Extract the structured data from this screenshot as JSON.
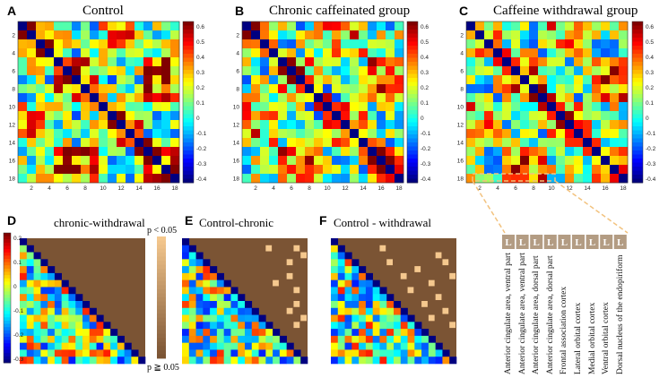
{
  "panels": [
    {
      "letter": "A",
      "title": "Control"
    },
    {
      "letter": "B",
      "title": "Chronic caffeinated group"
    },
    {
      "letter": "C",
      "title": "Caffeine withdrawal group"
    },
    {
      "letter": "D",
      "title": "chronic-withdrawal"
    },
    {
      "letter": "E",
      "title": "Control-chronic"
    },
    {
      "letter": "F",
      "title": "Control - withdrawal"
    }
  ],
  "colorbar_ticks_top": [
    "0.6",
    "0.5",
    "0.4",
    "0.3",
    "0.2",
    "0.1",
    "0",
    "-0.1",
    "-0.2",
    "-0.3",
    "-0.4"
  ],
  "colorbar_ticks_d": [
    "0.2",
    "0.1",
    "0",
    "-0.1",
    "-0.2",
    "-0.3"
  ],
  "significance": {
    "top": "p < 0.05",
    "bottom": "p ≧ 0.05"
  },
  "region_box_label": "L",
  "regions": [
    "Anterior cingulate area, ventral part",
    "Anterior cingulate area, ventral part",
    "Anterior cingulate area, dorsal part",
    "Anterior cingulate area, dorsal part",
    "Frontal association cortex",
    "Lateral orbital cortex",
    "Medial orbital cortex",
    "Ventral orbital cortex",
    "Dorsal nucleus of the endopiriform"
  ],
  "colors": {
    "brown": "#7b5434",
    "sig": "#f5c88e",
    "dashed": "#f2c27e",
    "box": "#b39c83",
    "diag": "#000080"
  },
  "chart_data": [
    {
      "type": "heatmap",
      "title": "Control",
      "rows": 18,
      "cols": 18,
      "vmin": -0.4,
      "vmax": 0.65,
      "axis_ticks": [
        2,
        4,
        6,
        8,
        10,
        12,
        14,
        16,
        18
      ]
    },
    {
      "type": "heatmap",
      "title": "Chronic caffeinated group",
      "rows": 18,
      "cols": 18,
      "vmin": -0.4,
      "vmax": 0.65,
      "axis_ticks": [
        2,
        4,
        6,
        8,
        10,
        12,
        14,
        16,
        18
      ]
    },
    {
      "type": "heatmap",
      "title": "Caffeine withdrawal group",
      "rows": 18,
      "cols": 18,
      "vmin": -0.4,
      "vmax": 0.65,
      "axis_ticks": [
        2,
        4,
        6,
        8,
        10,
        12,
        14,
        16,
        18
      ]
    },
    {
      "type": "heatmap",
      "title": "chronic-withdrawal",
      "rows": 18,
      "cols": 18,
      "vmin": -0.3,
      "vmax": 0.25,
      "triangle": "lower"
    },
    {
      "type": "heatmap",
      "title": "Control-chronic",
      "rows": 18,
      "cols": 18,
      "triangle": "lower",
      "significant_cells": [
        [
          1,
          12
        ],
        [
          1,
          16
        ],
        [
          2,
          17
        ],
        [
          3,
          15
        ],
        [
          5,
          15
        ],
        [
          6,
          13
        ],
        [
          7,
          16
        ],
        [
          9,
          16
        ],
        [
          10,
          15
        ],
        [
          11,
          17
        ],
        [
          12,
          16
        ]
      ]
    },
    {
      "type": "heatmap",
      "title": "Control - withdrawal",
      "rows": 18,
      "cols": 18,
      "triangle": "lower",
      "significant_cells": [
        [
          1,
          7
        ],
        [
          2,
          15
        ],
        [
          3,
          8
        ],
        [
          3,
          16
        ],
        [
          4,
          12
        ],
        [
          5,
          10
        ],
        [
          5,
          17
        ],
        [
          6,
          14
        ],
        [
          7,
          11
        ],
        [
          8,
          15
        ],
        [
          9,
          13
        ],
        [
          10,
          16
        ],
        [
          11,
          14
        ],
        [
          12,
          17
        ]
      ]
    }
  ]
}
